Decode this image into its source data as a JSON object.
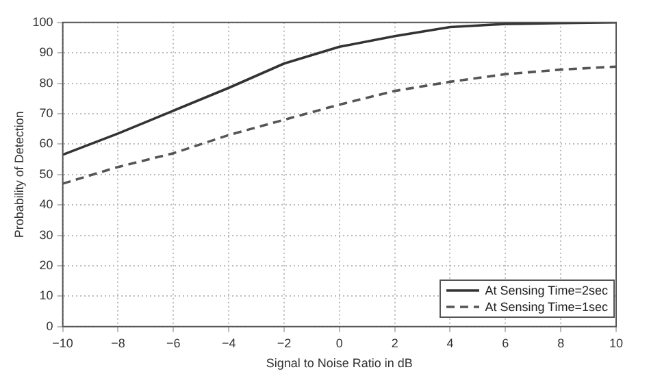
{
  "chart_data": {
    "type": "line",
    "xlabel": "Signal to Noise Ratio in dB",
    "ylabel": "Probability of Detection",
    "x": [
      -10,
      -8,
      -6,
      -4,
      -2,
      0,
      2,
      4,
      6,
      8,
      10
    ],
    "series": [
      {
        "name": "At Sensing Time=2sec",
        "color": "#333333",
        "line_style": "solid",
        "values": [
          56.5,
          63.5,
          71,
          78.5,
          86.5,
          92,
          95.5,
          98.5,
          99.5,
          99.8,
          100
        ]
      },
      {
        "name": "At Sensing Time=1sec",
        "color": "#555555",
        "line_style": "dashed",
        "values": [
          47,
          52.5,
          57,
          63,
          68,
          73,
          77.5,
          80.5,
          83,
          84.5,
          85.5
        ]
      }
    ],
    "xlim": [
      -10,
      10
    ],
    "xticks": [
      -10,
      -8,
      -6,
      -4,
      -2,
      0,
      2,
      4,
      6,
      8,
      10
    ],
    "ylim": [
      0,
      100
    ],
    "yticks": [
      0,
      10,
      20,
      30,
      40,
      50,
      60,
      70,
      80,
      90,
      100
    ],
    "grid": true,
    "legend": "bottom right",
    "marker": "none"
  }
}
